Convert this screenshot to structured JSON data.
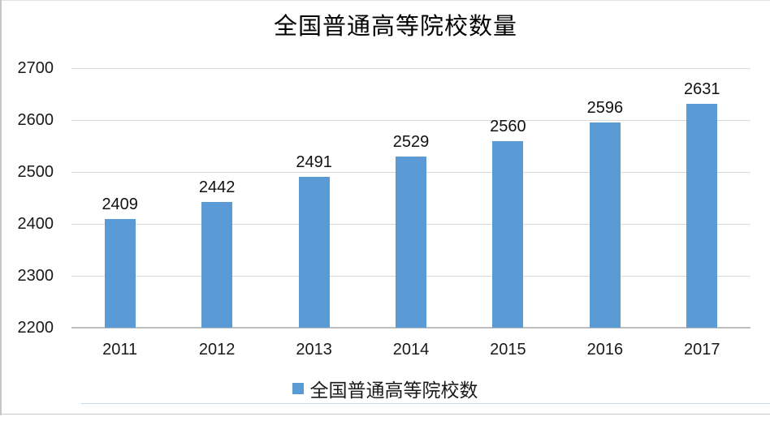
{
  "title": "全国普通高等院校数量",
  "legend": {
    "label": "全国普通高等院校数",
    "swatch_color": "#5B9BD5"
  },
  "chart_data": {
    "type": "bar",
    "title": "全国普通高等院校数量",
    "categories": [
      "2011",
      "2012",
      "2013",
      "2014",
      "2015",
      "2016",
      "2017"
    ],
    "values": [
      2409,
      2442,
      2491,
      2529,
      2560,
      2596,
      2631
    ],
    "series_name": "全国普通高等院校数",
    "xlabel": "",
    "ylabel": "",
    "ylim": [
      2200,
      2700
    ],
    "yticks": [
      2200,
      2300,
      2400,
      2500,
      2600,
      2700
    ],
    "ytick_interval": 100,
    "grid": true,
    "legend_position": "bottom",
    "bar_color": "#5B9BD5",
    "gridline_color": "#D9D9D9",
    "axis_line_color": "#BFBFBF",
    "label_color": "#1A1A1A",
    "background_color": "#FFFFFF"
  }
}
